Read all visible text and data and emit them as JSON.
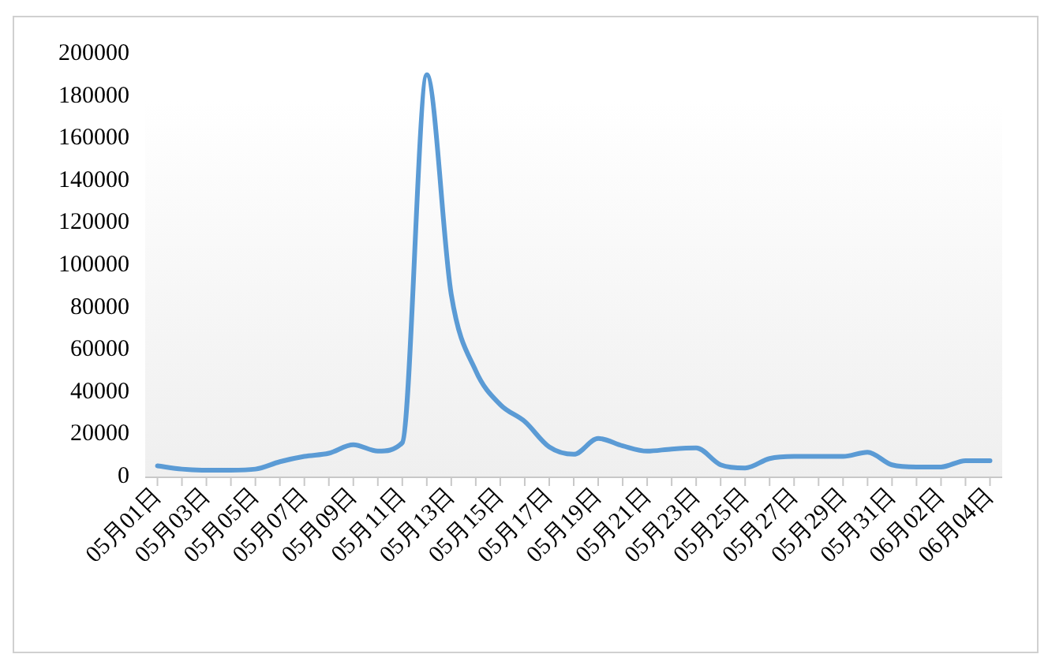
{
  "chart_data": {
    "type": "line",
    "categories": [
      "05月01日",
      null,
      "05月03日",
      null,
      "05月05日",
      null,
      "05月07日",
      null,
      "05月09日",
      null,
      "05月11日",
      null,
      "05月13日",
      null,
      "05月15日",
      null,
      "05月17日",
      null,
      "05月19日",
      null,
      "05月21日",
      null,
      "05月23日",
      null,
      "05月25日",
      null,
      "05月27日",
      null,
      "05月29日",
      null,
      "05月31日",
      null,
      "06月02日",
      null,
      "06月04日"
    ],
    "series": [
      {
        "color": "#5b9bd5",
        "values": [
          5000,
          3500,
          3000,
          3000,
          3500,
          7000,
          9500,
          11000,
          15000,
          12000,
          16000,
          190000,
          86000,
          50000,
          34000,
          26000,
          14000,
          10500,
          18000,
          14500,
          12000,
          13000,
          13500,
          5500,
          4000,
          8500,
          9500,
          9500,
          9500,
          11500,
          5500,
          4500,
          4500,
          7500,
          7500
        ]
      }
    ],
    "ylim": [
      0,
      200000
    ],
    "yticks": [
      0,
      20000,
      40000,
      60000,
      80000,
      100000,
      120000,
      140000,
      160000,
      180000,
      200000
    ],
    "grid": false,
    "marker": "none",
    "line_style": "solid"
  }
}
